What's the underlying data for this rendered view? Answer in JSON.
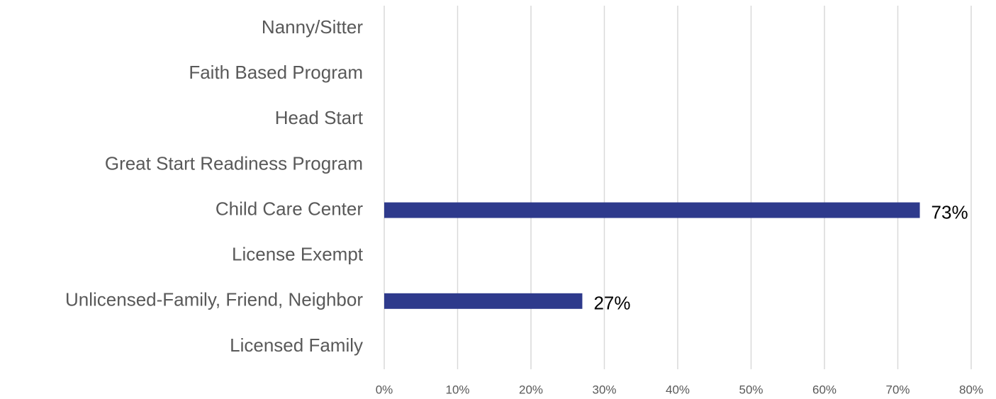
{
  "chart_data": {
    "type": "barh",
    "categories": [
      "Nanny/Sitter",
      "Faith Based Program",
      "Head Start",
      "Great Start Readiness Program",
      "Child Care Center",
      "License Exempt",
      "Unlicensed-Family, Friend, Neighbor",
      "Licensed Family"
    ],
    "values": [
      0,
      0,
      0,
      0,
      73,
      0,
      27,
      0
    ],
    "value_labels": [
      null,
      null,
      null,
      null,
      "73%",
      null,
      "27%",
      null
    ],
    "color": "#2e3a8c",
    "xlim": [
      0,
      80
    ],
    "xticks": [
      {
        "value": 0,
        "label": "0%"
      },
      {
        "value": 10,
        "label": "10%"
      },
      {
        "value": 20,
        "label": "20%"
      },
      {
        "value": 30,
        "label": "30%"
      },
      {
        "value": 40,
        "label": "40%"
      },
      {
        "value": 50,
        "label": "50%"
      },
      {
        "value": 60,
        "label": "60%"
      },
      {
        "value": 70,
        "label": "70%"
      },
      {
        "value": 80,
        "label": "80%"
      }
    ],
    "grid": true
  }
}
